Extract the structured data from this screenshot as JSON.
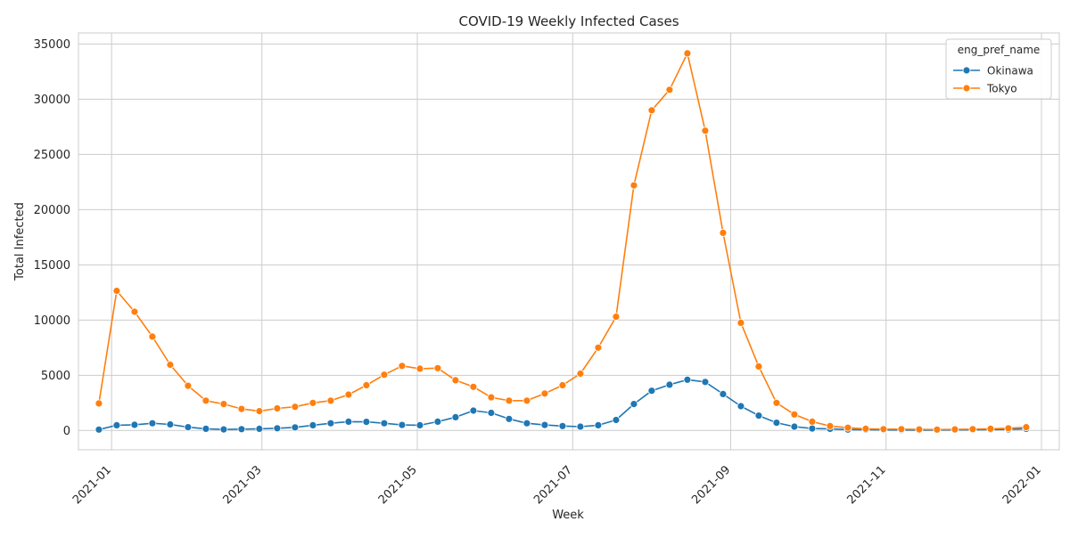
{
  "chart_data": {
    "type": "line",
    "title": "COVID-19 Weekly Infected Cases",
    "xlabel": "Week",
    "ylabel": "Total Infected",
    "x_ticks": [
      "2021-01",
      "2021-03",
      "2021-05",
      "2021-07",
      "2021-09",
      "2021-11",
      "2022-01"
    ],
    "x_range": [
      "2020-12-19",
      "2022-01-08"
    ],
    "ylim": [
      -1750,
      36000
    ],
    "y_ticks": [
      0,
      5000,
      10000,
      15000,
      20000,
      25000,
      30000,
      35000
    ],
    "grid": true,
    "legend": {
      "title": "eng_pref_name",
      "placement": "top-right"
    },
    "x": [
      "2020-12-27",
      "2021-01-03",
      "2021-01-10",
      "2021-01-17",
      "2021-01-24",
      "2021-01-31",
      "2021-02-07",
      "2021-02-14",
      "2021-02-21",
      "2021-02-28",
      "2021-03-07",
      "2021-03-14",
      "2021-03-21",
      "2021-03-28",
      "2021-04-04",
      "2021-04-11",
      "2021-04-18",
      "2021-04-25",
      "2021-05-02",
      "2021-05-09",
      "2021-05-16",
      "2021-05-23",
      "2021-05-30",
      "2021-06-06",
      "2021-06-13",
      "2021-06-20",
      "2021-06-27",
      "2021-07-04",
      "2021-07-11",
      "2021-07-18",
      "2021-07-25",
      "2021-08-01",
      "2021-08-08",
      "2021-08-15",
      "2021-08-22",
      "2021-08-29",
      "2021-09-05",
      "2021-09-12",
      "2021-09-19",
      "2021-09-26",
      "2021-10-03",
      "2021-10-10",
      "2021-10-17",
      "2021-10-24",
      "2021-10-31",
      "2021-11-07",
      "2021-11-14",
      "2021-11-21",
      "2021-11-28",
      "2021-12-05",
      "2021-12-12",
      "2021-12-19",
      "2021-12-26"
    ],
    "series": [
      {
        "name": "Okinawa",
        "color": "#1f77b4",
        "values": [
          80,
          480,
          520,
          650,
          550,
          300,
          150,
          100,
          120,
          150,
          200,
          280,
          480,
          650,
          800,
          780,
          650,
          500,
          480,
          800,
          1200,
          1800,
          1600,
          1050,
          650,
          500,
          400,
          350,
          480,
          950,
          2400,
          3600,
          4150,
          4600,
          4400,
          3300,
          2200,
          1350,
          700,
          350,
          180,
          150,
          80,
          70,
          50,
          40,
          30,
          40,
          50,
          60,
          80,
          100,
          150
        ]
      },
      {
        "name": "Tokyo",
        "color": "#ff7f0e",
        "values": [
          2450,
          12650,
          10750,
          8500,
          5950,
          4050,
          2700,
          2400,
          1950,
          1750,
          2000,
          2150,
          2500,
          2700,
          3250,
          4100,
          5050,
          5850,
          5600,
          5650,
          4550,
          3950,
          3000,
          2700,
          2700,
          3350,
          4100,
          5150,
          7500,
          10300,
          22200,
          29000,
          30850,
          34150,
          27150,
          17900,
          9750,
          5800,
          2500,
          1450,
          800,
          400,
          250,
          150,
          120,
          120,
          100,
          80,
          100,
          120,
          150,
          200,
          300
        ]
      }
    ]
  }
}
